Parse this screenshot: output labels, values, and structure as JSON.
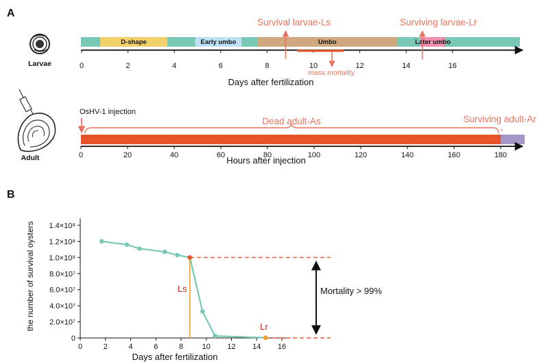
{
  "panel_a": {
    "label": "A",
    "larvae": {
      "organism_label": "Larvae",
      "axis_label": "Days after fertilization",
      "ticks": [
        "0",
        "2",
        "4",
        "6",
        "8",
        "10",
        "12",
        "14",
        "16"
      ],
      "stages": [
        {
          "label": "D-shape",
          "start": 0.8,
          "end": 3.7,
          "color": "#f2d06b"
        },
        {
          "label": "Early umbo",
          "start": 4.9,
          "end": 6.9,
          "color": "#bfe0f2"
        },
        {
          "label": "Umbo",
          "start": 7.6,
          "end": 13.6,
          "color": "#cfa87e"
        },
        {
          "label": "Later umbo",
          "start": 14.6,
          "end": 15.7,
          "color": "#f08fae"
        }
      ],
      "bar_color": "#79c7b5",
      "survival_label": "Survival larvae-Ls",
      "survival_day": 8.8,
      "surviving_label": "Surviving larvae-Lr",
      "surviving_day": 14.7,
      "mortality_label": "mass mortality",
      "mortality_start": 9.3,
      "mortality_end": 11.3,
      "mortality_peak": 10.8
    },
    "adult": {
      "organism_label": "Adult",
      "axis_label": "Hours after injection",
      "ticks": [
        "0",
        "20",
        "40",
        "60",
        "80",
        "100",
        "120",
        "140",
        "160",
        "180"
      ],
      "injection_label": "OsHV-1 injection",
      "dead_label": "Dead adult-As",
      "surviving_label": "Surviving adult-Ar",
      "dead_color": "#e8542a",
      "surviving_color": "#a597c8",
      "dead_end_hour": 180
    },
    "accent_color": "#e8745f"
  },
  "panel_b": {
    "label": "B",
    "chart_data": {
      "type": "line",
      "xlabel": "Days after fertilization",
      "ylabel": "the number of survival oysters",
      "x_ticks": [
        "0",
        "2",
        "4",
        "6",
        "8",
        "10",
        "12",
        "14",
        "16"
      ],
      "y_ticks": [
        "0",
        "2.0×10⁷",
        "4.0×10⁷",
        "6.0×10⁷",
        "8.0×10⁷",
        "1.0×10⁸",
        "1.2×10⁸",
        "1.4×10⁸"
      ],
      "xlim": [
        0,
        16
      ],
      "ylim": [
        0,
        140000000
      ],
      "x": [
        1.7,
        3.7,
        4.7,
        6.7,
        7.7,
        8.7,
        9.7,
        10.7,
        14.7
      ],
      "y": [
        120000000,
        116000000,
        111000000,
        107000000,
        103000000,
        100000000,
        33000000,
        2500000,
        300000
      ],
      "line_color": "#79c7b5",
      "ls_label": "Ls",
      "ls_x": 8.7,
      "lr_label": "Lr",
      "lr_x": 14.7,
      "mortality_label": "Mortality > 99%",
      "marker_color": "#e8542a",
      "vline_color": "#f0a030",
      "label_color": "#cc2222"
    }
  }
}
